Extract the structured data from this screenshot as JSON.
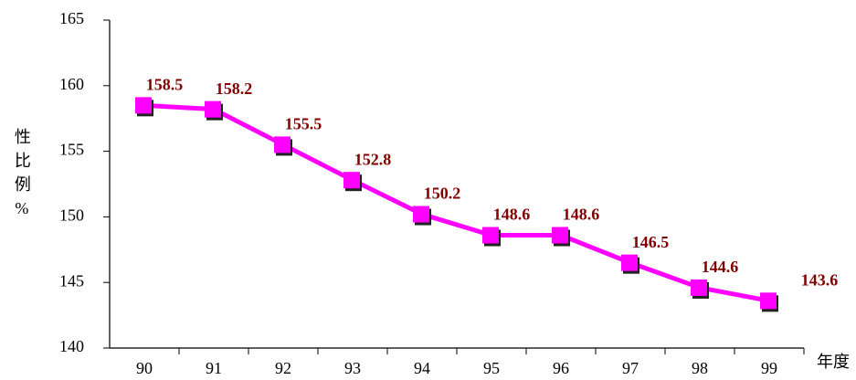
{
  "chart_data": {
    "type": "line",
    "y_label": "性比例%",
    "x_label": "年度",
    "categories": [
      "90",
      "91",
      "92",
      "93",
      "94",
      "95",
      "96",
      "97",
      "98",
      "99"
    ],
    "values": [
      158.5,
      158.2,
      155.5,
      152.8,
      150.2,
      148.6,
      148.6,
      146.5,
      144.6,
      143.6
    ],
    "color": "#ff00ff",
    "label_color": "#800000",
    "ylim": [
      140,
      165
    ],
    "yticks": [
      140,
      145,
      150,
      155,
      160,
      165
    ],
    "grid": false
  }
}
